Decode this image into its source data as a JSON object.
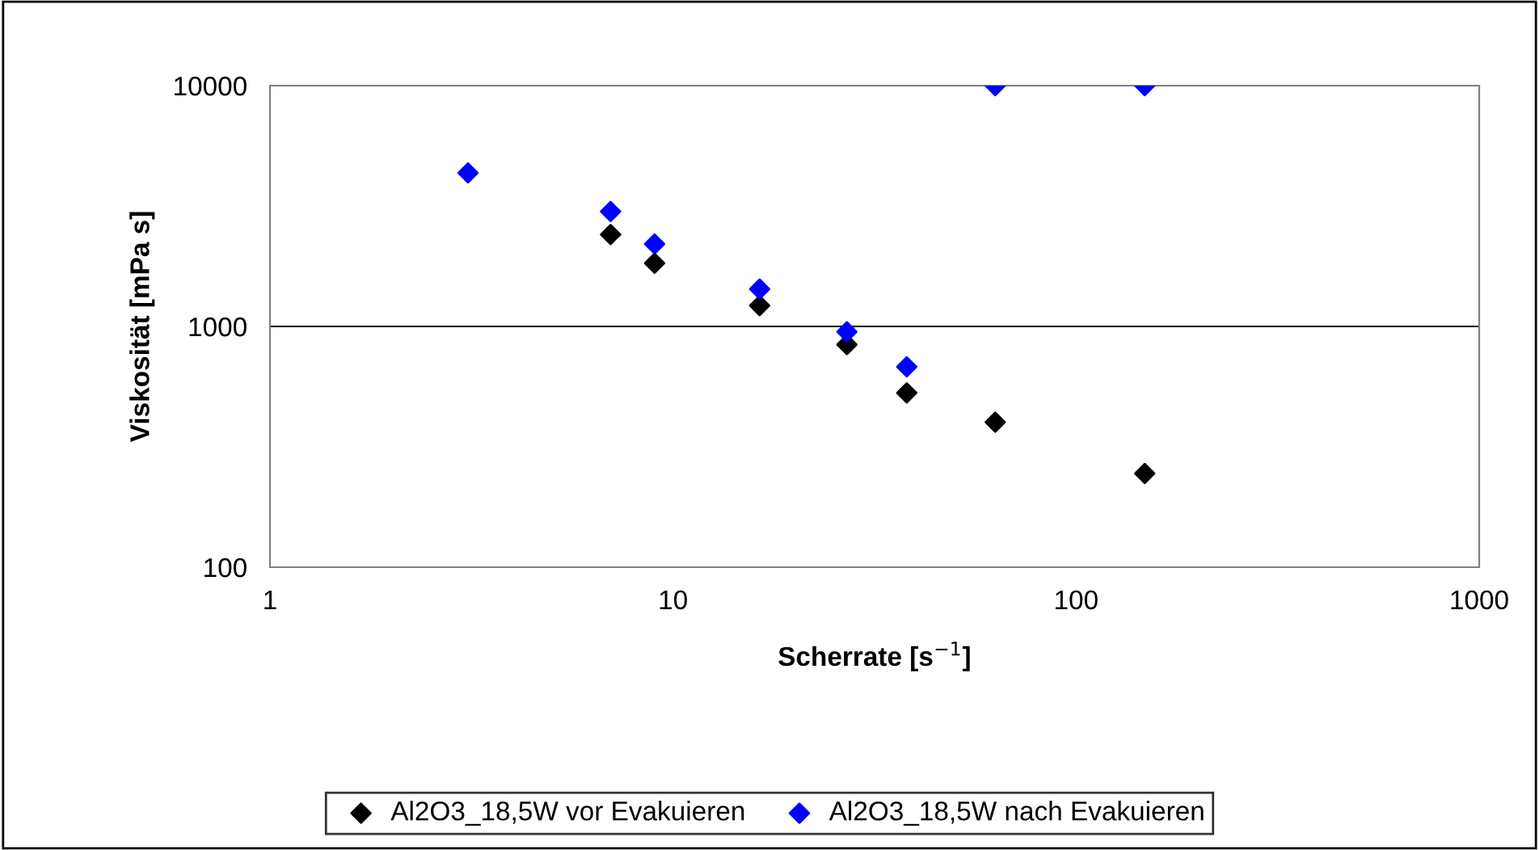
{
  "chart_data": {
    "type": "scatter",
    "xlabel": "Scherrate [s$^{−1}$]",
    "ylabel": "Viskosität [mPa s]",
    "log": "xy",
    "xlim": [
      1,
      1000
    ],
    "xticks": [
      1,
      10,
      100,
      1000
    ],
    "ylim": [
      100,
      10000
    ],
    "yticks": [
      100,
      1000,
      10000
    ],
    "grid": "y",
    "legend": "bottom",
    "marker": "diamond",
    "series": [
      {
        "name": "Al2O3_18,5W vor Evakuieren",
        "color": "#000000",
        "x": [
          7.0,
          9.0,
          16.4,
          27,
          38,
          63,
          148
        ],
        "values": [
          2410,
          1830,
          1220,
          840,
          530,
          400,
          245
        ]
      },
      {
        "name": "Al2O3_18,5W nach Evakuieren",
        "color": "#0000ff",
        "x": [
          3.1,
          7.0,
          9.0,
          16.4,
          27,
          38,
          63,
          148
        ],
        "values": [
          4340,
          3000,
          2200,
          1430,
          950,
          680,
          10000,
          10000
        ]
      }
    ]
  }
}
